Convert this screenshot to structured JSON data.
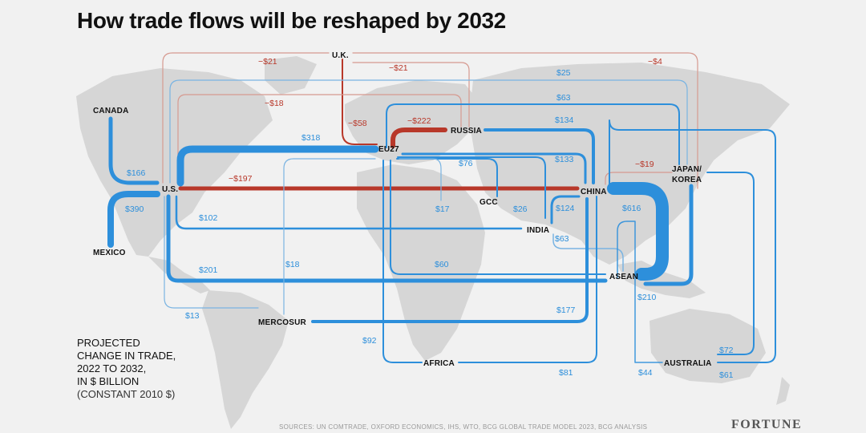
{
  "title": "How trade flows will be reshaped by 2032",
  "colors": {
    "increase": "#2d8fdb",
    "decrease": "#b8382a",
    "land": "#d6d6d6",
    "background": "#f1f1f1"
  },
  "legend": {
    "lines": [
      "PROJECTED",
      "CHANGE IN TRADE,",
      "2022 TO 2032,",
      "IN $ BILLION"
    ],
    "note": "(CONSTANT 2010 $)"
  },
  "source": "SOURCES: UN COMTRADE, OXFORD ECONOMICS, IHS, WTO, BCG GLOBAL TRADE MODEL 2023, BCG ANALYSIS",
  "brand": "FORTUNE",
  "regions": [
    "U.K.",
    "CANADA",
    "RUSSIA",
    "EU27",
    "JAPAN/",
    "KOREA",
    "U.S.",
    "CHINA",
    "GCC",
    "INDIA",
    "MEXICO",
    "ASEAN",
    "MERCOSUR",
    "AFRICA",
    "AUSTRALIA"
  ],
  "flows": [
    {
      "from": "U.K.",
      "to": "JAPAN/KOREA",
      "value": "−$4",
      "color": "decrease"
    },
    {
      "from": "U.K.",
      "to": "U.S.",
      "value": "−$21",
      "color": "decrease"
    },
    {
      "from": "U.K.",
      "to": "RUSSIA",
      "value": "−$21",
      "color": "decrease"
    },
    {
      "from": "U.K.",
      "to": "EU27",
      "value": "−$58",
      "color": "decrease"
    },
    {
      "from": "U.S.",
      "to": "RUSSIA",
      "value": "−$18",
      "color": "decrease"
    },
    {
      "from": "RUSSIA",
      "to": "EU27",
      "value": "−$222",
      "color": "decrease"
    },
    {
      "from": "U.S.",
      "to": "CHINA",
      "value": "−$197",
      "color": "decrease"
    },
    {
      "from": "CHINA",
      "to": "JAPAN/KOREA",
      "value": "−$19",
      "color": "decrease"
    },
    {
      "from": "U.S.",
      "to": "JAPAN/KOREA",
      "value": "$25",
      "color": "increase"
    },
    {
      "from": "EU27",
      "to": "JAPAN/KOREA",
      "value": "$63",
      "color": "increase"
    },
    {
      "from": "RUSSIA",
      "to": "CHINA",
      "value": "$134",
      "color": "increase"
    },
    {
      "from": "U.S.",
      "to": "EU27",
      "value": "$318",
      "color": "increase"
    },
    {
      "from": "EU27",
      "to": "CHINA",
      "value": "$133",
      "color": "increase"
    },
    {
      "from": "EU27",
      "to": "GCC",
      "value": "$76",
      "color": "increase"
    },
    {
      "from": "CANADA",
      "to": "U.S.",
      "value": "$166",
      "color": "increase"
    },
    {
      "from": "MEXICO",
      "to": "U.S.",
      "value": "$390",
      "color": "increase"
    },
    {
      "from": "U.S.",
      "to": "INDIA",
      "value": "$102",
      "color": "increase"
    },
    {
      "from": "EU27",
      "to": "AFRICA",
      "value": "$17",
      "color": "increase"
    },
    {
      "from": "EU27",
      "to": "INDIA",
      "value": "$26",
      "color": "increase"
    },
    {
      "from": "CHINA",
      "to": "INDIA",
      "value": "$124",
      "color": "increase"
    },
    {
      "from": "CHINA",
      "to": "ASEAN",
      "value": "$616",
      "color": "increase"
    },
    {
      "from": "INDIA",
      "to": "ASEAN",
      "value": "$63",
      "color": "increase"
    },
    {
      "from": "EU27",
      "to": "ASEAN",
      "value": "$60",
      "color": "increase"
    },
    {
      "from": "U.S.",
      "to": "ASEAN",
      "value": "$201",
      "color": "increase"
    },
    {
      "from": "U.S.",
      "to": "MERCOSUR",
      "value": "$18",
      "color": "increase"
    },
    {
      "from": "JAPAN/KOREA",
      "to": "ASEAN",
      "value": "$210",
      "color": "increase"
    },
    {
      "from": "U.S.",
      "to": "MERCOSUR",
      "value": "$13",
      "color": "increase"
    },
    {
      "from": "MERCOSUR",
      "to": "CHINA",
      "value": "$177",
      "color": "increase"
    },
    {
      "from": "EU27",
      "to": "AFRICA",
      "value": "$92",
      "color": "increase"
    },
    {
      "from": "CHINA",
      "to": "AUSTRALIA",
      "value": "$72",
      "color": "increase"
    },
    {
      "from": "CHINA",
      "to": "AFRICA",
      "value": "$81",
      "color": "increase"
    },
    {
      "from": "ASEAN",
      "to": "AUSTRALIA",
      "value": "$44",
      "color": "increase"
    },
    {
      "from": "JAPAN/KOREA",
      "to": "AUSTRALIA",
      "value": "$61",
      "color": "increase"
    }
  ]
}
